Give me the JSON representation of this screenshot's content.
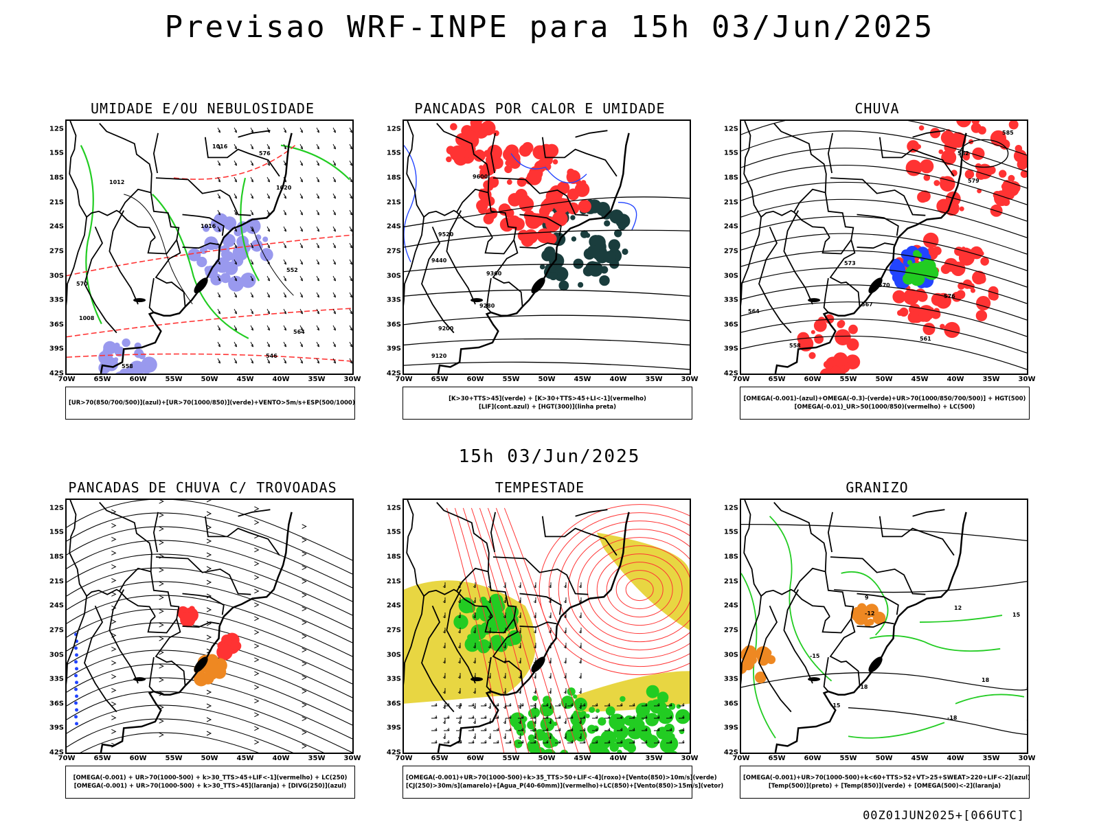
{
  "header": {
    "title": "Previsao WRF-INPE  para 15h 03/Jun/2025",
    "mid_title": "15h 03/Jun/2025",
    "footer": "00Z01JUN2025+[066UTC]"
  },
  "axes": {
    "latitudes": [
      "12S",
      "15S",
      "18S",
      "21S",
      "24S",
      "27S",
      "30S",
      "33S",
      "36S",
      "39S",
      "42S"
    ],
    "longitudes": [
      "70W",
      "65W",
      "60W",
      "55W",
      "50W",
      "45W",
      "40W",
      "35W",
      "30W"
    ]
  },
  "colors": {
    "blue_light": "#9999ee",
    "blue": "#2244ff",
    "green": "#22cc22",
    "red": "#ff3333",
    "dark_teal": "#1a3d3d",
    "orange": "#ee8822",
    "yellow": "#e6d22e",
    "black": "#000000"
  },
  "panels": [
    {
      "id": "umidade",
      "title": "UMIDADE E/OU NEBULOSIDADE",
      "legend": [
        "[UR>70(850/700/500)](azul)+[UR>70(1000/850)](verde)+VENTO>5m/s+ESP(500/1000)"
      ],
      "contour_labels": [
        "1016",
        "1012",
        "1020",
        "1016",
        "1008",
        "576",
        "570",
        "564",
        "558",
        "552",
        "546"
      ]
    },
    {
      "id": "pancadas-calor",
      "title": "PANCADAS POR CALOR E UMIDADE",
      "legend": [
        "[K>30+TTS>45](verde) + [K>30+TTS>45+LI<-1](vermelho)",
        "[LIF](cont.azul) + [HGT(300)](linha preta)"
      ],
      "contour_labels": [
        "9600",
        "9520",
        "9440",
        "9360",
        "9280",
        "9200",
        "9120"
      ]
    },
    {
      "id": "chuva",
      "title": "CHUVA",
      "legend": [
        "[OMEGA(-0.001)-(azul)+OMEGA(-0.3)-(verde)+UR>70(1000/850/700/500)] + HGT(500)",
        "[OMEGA(-0.01)_UR>50(1000/850)(vermelho) + LC(500)"
      ],
      "contour_labels": [
        "585",
        "582",
        "579",
        "576",
        "573",
        "570",
        "567",
        "564",
        "561",
        "558"
      ]
    },
    {
      "id": "trovoadas",
      "title": "PANCADAS DE CHUVA C/ TROVOADAS",
      "legend": [
        "[OMEGA(-0.001) + UR>70(1000-500) + k>30_TTS>45+LIF<-1](vermelho) + LC(250)",
        "[OMEGA(-0.001) + UR>70(1000-500) + k>30_TTS>45](laranja) + [DIVG(250)](azul)"
      ],
      "contour_labels": []
    },
    {
      "id": "tempestade",
      "title": "TEMPESTADE",
      "legend": [
        "[OMEGA(-0.001)+UR>70(1000-500)+k>35_TTS>50+LIF<-4](roxo)+[Vento(850)>10m/s](verde)",
        "[CJ(250)>30m/s](amarelo)+[Agua_P(40-60mm)](vermelho)+LC(850)+[Vento(850)>15m/s](vetor)"
      ],
      "contour_labels": []
    },
    {
      "id": "granizo",
      "title": "GRANIZO",
      "legend": [
        "[OMEGA(-0.001)+UR>70(1000-500)+k<60+TTS>52+VT>25+SWEAT>220+LIF<-2](azul)",
        "[Temp(500)](preto) + [Temp(850)](verde) + [OMEGA(500)<-2](laranja)"
      ],
      "contour_labels": [
        "-12",
        "-15",
        "-18",
        "-15",
        "-18",
        "9",
        "12",
        "15",
        "18"
      ]
    }
  ]
}
